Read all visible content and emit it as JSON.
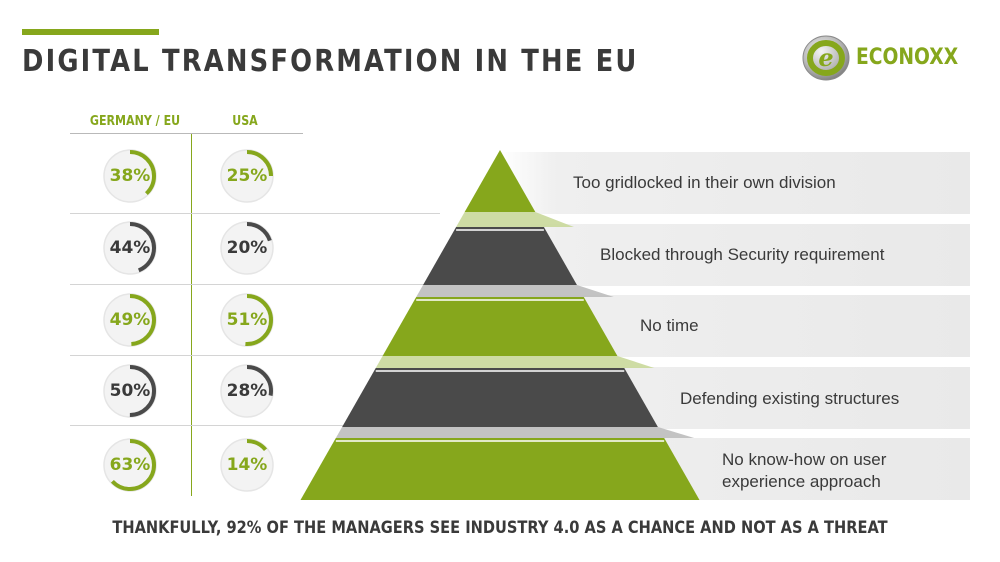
{
  "header": {
    "title": "DIGITAL TRANSFORMATION IN THE EU",
    "logo_text": "ECONOXX",
    "logo_letter": "e"
  },
  "colors": {
    "accent": "#86a71c",
    "dark": "#4a4a4a",
    "track": "#e5e5e5"
  },
  "comparison": {
    "headers": {
      "germany_eu": "GERMANY / EU",
      "usa": "USA"
    },
    "rows": [
      {
        "germany_eu": {
          "label": "38%",
          "value": 38,
          "color": "green"
        },
        "usa": {
          "label": "25%",
          "value": 25,
          "color": "green"
        }
      },
      {
        "germany_eu": {
          "label": "44%",
          "value": 44,
          "color": "dark"
        },
        "usa": {
          "label": "20%",
          "value": 20,
          "color": "dark"
        }
      },
      {
        "germany_eu": {
          "label": "49%",
          "value": 49,
          "color": "green"
        },
        "usa": {
          "label": "51%",
          "value": 51,
          "color": "green"
        }
      },
      {
        "germany_eu": {
          "label": "50%",
          "value": 50,
          "color": "dark"
        },
        "usa": {
          "label": "28%",
          "value": 28,
          "color": "dark"
        }
      },
      {
        "germany_eu": {
          "label": "63%",
          "value": 63,
          "color": "green"
        },
        "usa": {
          "label": "14%",
          "value": 14,
          "color": "green"
        }
      }
    ]
  },
  "pyramid": {
    "levels": [
      {
        "label": "Too gridlocked in their own division",
        "color": "green"
      },
      {
        "label": "Blocked through Security requirement",
        "color": "dark"
      },
      {
        "label": "No time",
        "color": "green"
      },
      {
        "label": "Defending existing structures",
        "color": "dark"
      },
      {
        "label": "No know-how on user experience approach",
        "color": "green"
      }
    ]
  },
  "footer": {
    "text": "THANKFULLY, 92% OF THE MANAGERS SEE INDUSTRY 4.0 AS A CHANCE AND NOT AS A THREAT"
  }
}
